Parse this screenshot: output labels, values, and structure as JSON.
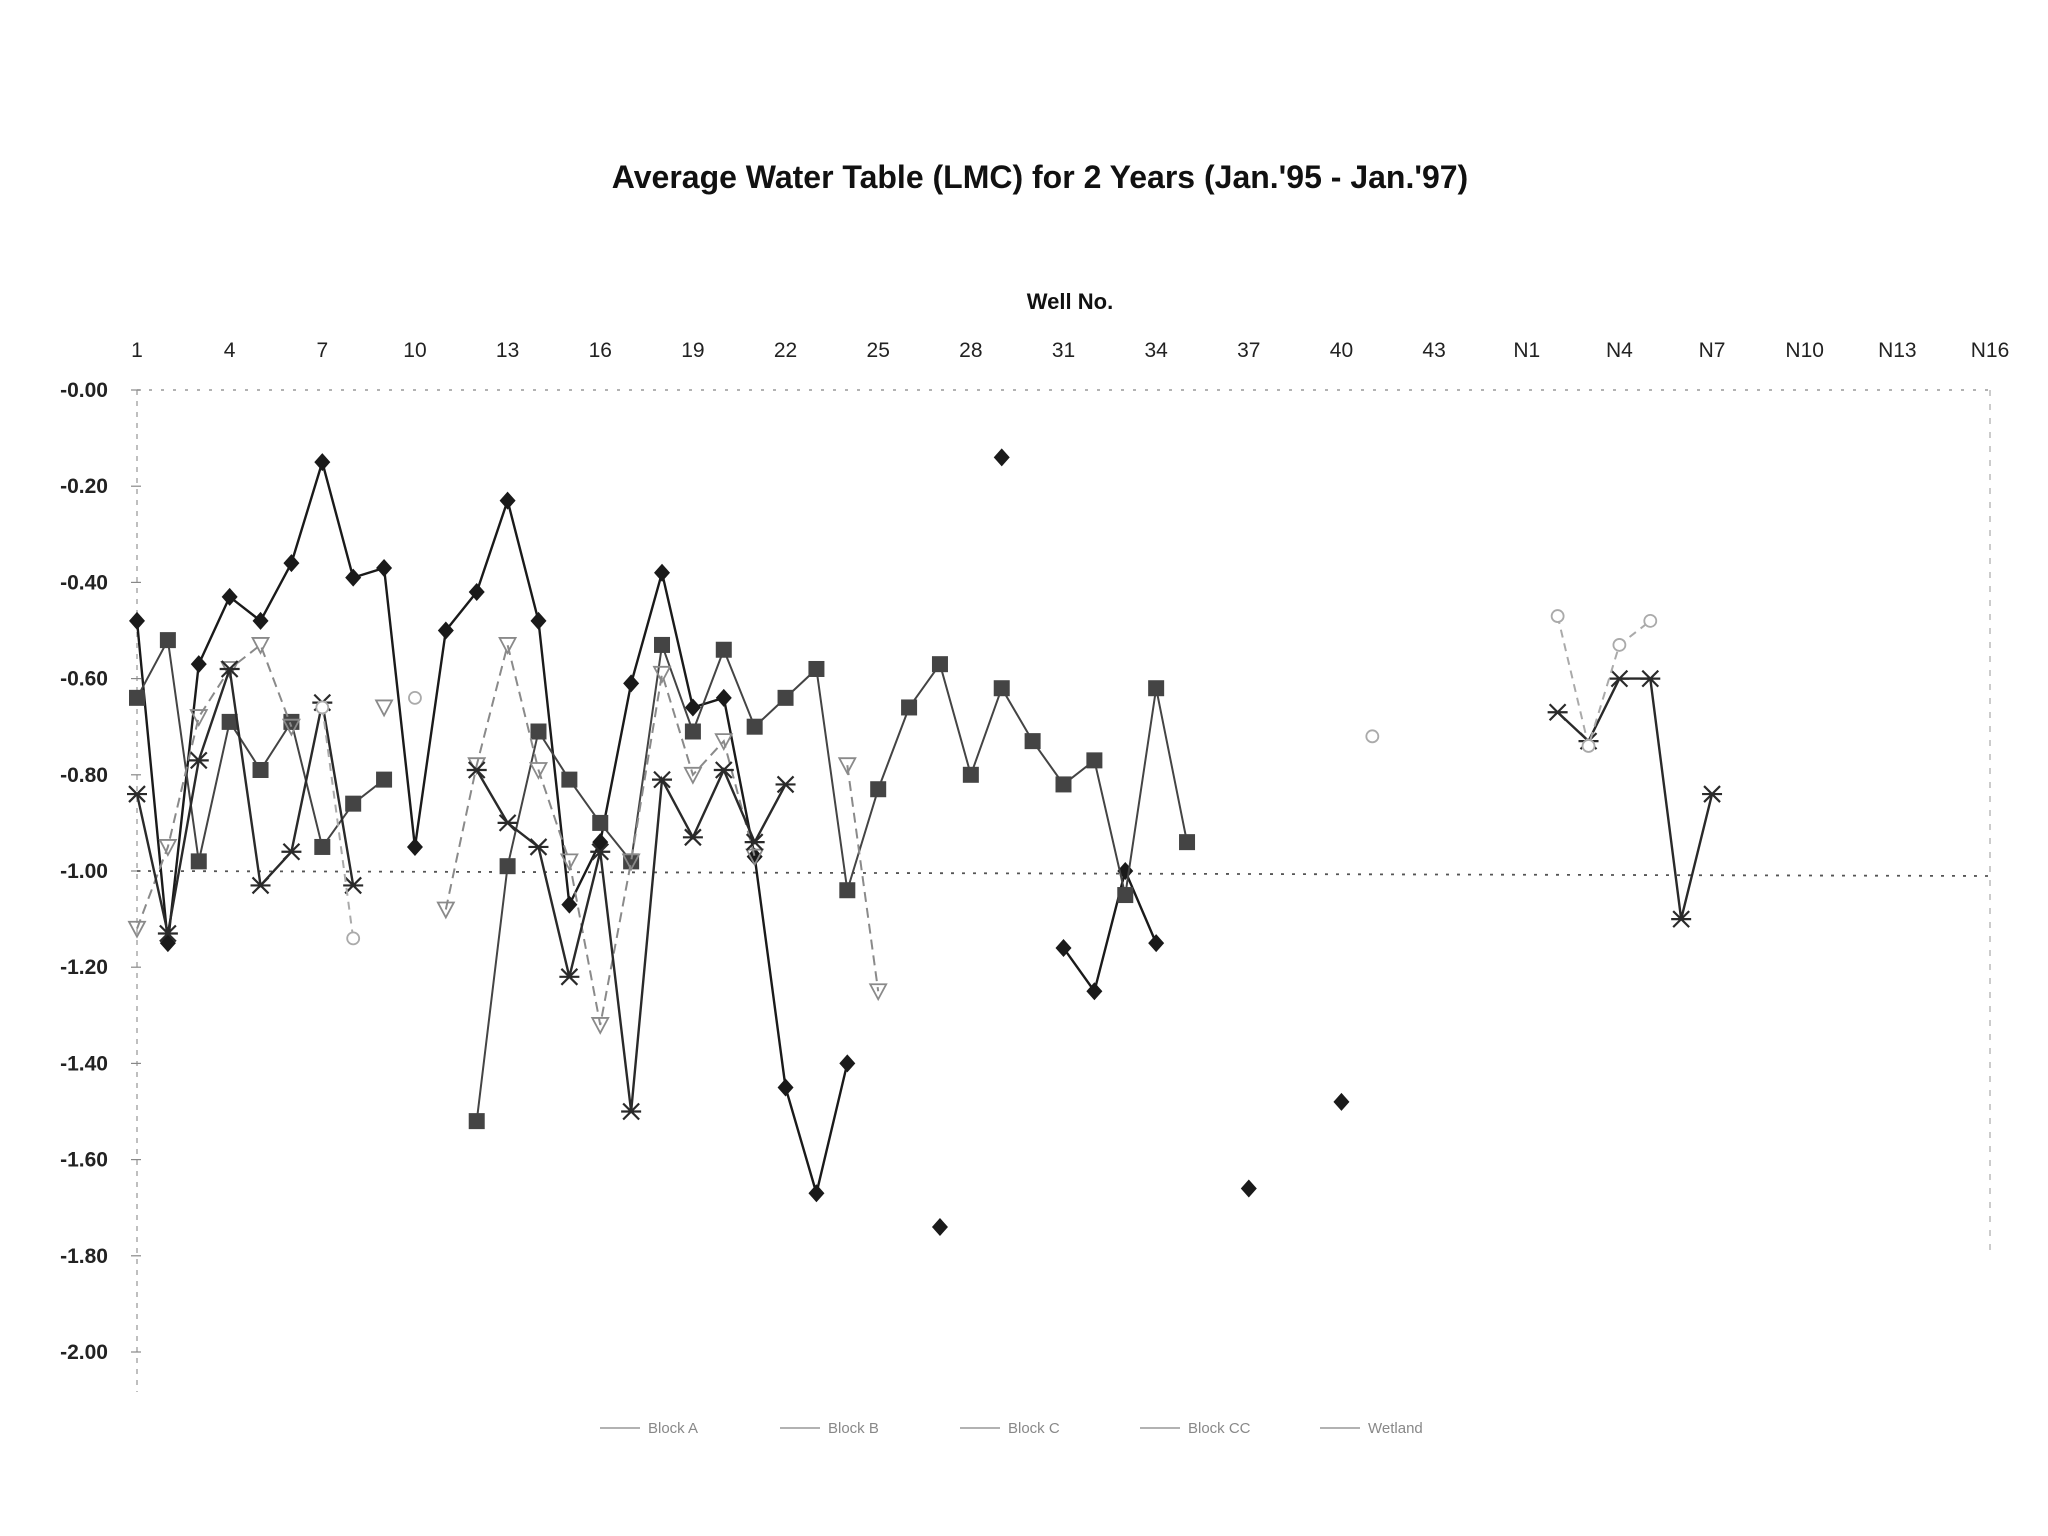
{
  "chart_data": {
    "type": "line",
    "title": "Average Water Table (LMC) for 2 Years (Jan.'95 - Jan.'97)",
    "xlabel": "Well No.",
    "ylabel": "",
    "ylim": [
      -2.0,
      0.0
    ],
    "y_ticks": [
      "-0.00",
      "-0.20",
      "-0.40",
      "-0.60",
      "-0.80",
      "-1.00",
      "-1.20",
      "-1.40",
      "-1.60",
      "-1.80",
      "-2.00"
    ],
    "x_tick_labels": [
      "1",
      "4",
      "7",
      "10",
      "13",
      "16",
      "19",
      "22",
      "25",
      "28",
      "31",
      "34",
      "37",
      "40",
      "43",
      "N1",
      "N4",
      "N7",
      "N10",
      "N13",
      "N16"
    ],
    "x_categories_count": 61,
    "reference_line": -1.0,
    "legend": [
      "Block A",
      "Block B",
      "Block C",
      "Block CC",
      "Wetland"
    ],
    "series": [
      {
        "name": "Block A",
        "color": "#1a1a1a",
        "marker": "diamond",
        "values": [
          -0.48,
          -1.15,
          -0.57,
          -0.43,
          -0.48,
          -0.36,
          -0.15,
          -0.39,
          -0.37,
          -0.95,
          -0.5,
          -0.42,
          -0.23,
          -0.48,
          -1.07,
          -0.94,
          -0.61,
          -0.38,
          -0.66,
          -0.64,
          -0.97,
          -1.45,
          -1.67,
          -1.4,
          null,
          null,
          -1.74,
          null,
          -0.14,
          null,
          -1.16,
          -1.25,
          -1.0,
          -1.15,
          null,
          null,
          -1.66,
          null,
          null,
          -1.48,
          null,
          null,
          null,
          null,
          null,
          null,
          null,
          null,
          null,
          null,
          null,
          null,
          null,
          null,
          null,
          null,
          null,
          null,
          null,
          null,
          null
        ]
      },
      {
        "name": "Block B",
        "color": "#444444",
        "marker": "square",
        "values": [
          -0.64,
          -0.52,
          -0.98,
          -0.69,
          -0.79,
          -0.69,
          -0.95,
          -0.86,
          -0.81,
          null,
          null,
          -1.52,
          -0.99,
          -0.71,
          -0.81,
          -0.9,
          -0.98,
          -0.53,
          -0.71,
          -0.54,
          -0.7,
          -0.64,
          -0.58,
          -1.04,
          -0.83,
          -0.66,
          -0.57,
          -0.8,
          -0.62,
          -0.73,
          -0.82,
          -0.77,
          -1.05,
          -0.62,
          -0.94,
          null,
          null,
          null,
          null,
          null,
          null,
          null,
          null,
          null,
          null,
          null,
          null,
          null,
          null,
          null,
          null,
          null,
          null,
          null,
          null,
          null,
          null,
          null,
          null,
          null,
          null
        ]
      },
      {
        "name": "Block C",
        "color": "#8a8a8a",
        "marker": "triangle",
        "values": [
          -1.12,
          -0.95,
          -0.68,
          -0.58,
          -0.53,
          -0.7,
          null,
          null,
          -0.66,
          null,
          -1.08,
          -0.78,
          -0.53,
          -0.79,
          -0.98,
          -1.32,
          -0.98,
          -0.59,
          -0.8,
          -0.73,
          -0.97,
          null,
          null,
          -0.78,
          -1.25,
          null,
          null,
          null,
          null,
          null,
          null,
          null,
          null,
          null,
          null,
          null,
          null,
          null,
          null,
          null,
          null,
          null,
          null,
          null,
          null,
          null,
          null,
          null,
          null,
          null,
          null,
          null,
          null,
          null,
          null,
          null,
          null,
          null,
          null,
          null,
          null
        ]
      },
      {
        "name": "Block CC",
        "color": "#2a2a2a",
        "marker": "asterisk",
        "values": [
          -0.84,
          -1.13,
          -0.77,
          -0.58,
          -1.03,
          -0.96,
          -0.65,
          -1.03,
          null,
          null,
          null,
          -0.79,
          -0.9,
          -0.95,
          -1.22,
          -0.96,
          -1.5,
          -0.81,
          -0.93,
          -0.79,
          -0.94,
          -0.82,
          null,
          null,
          null,
          null,
          null,
          null,
          null,
          null,
          null,
          null,
          null,
          null,
          null,
          null,
          null,
          null,
          null,
          null,
          null,
          null,
          null,
          null,
          null,
          null,
          -0.67,
          -0.73,
          -0.6,
          -0.6,
          -1.1,
          -0.84,
          null,
          null,
          null,
          null,
          null,
          null,
          null,
          null,
          null
        ]
      },
      {
        "name": "Wetland",
        "color": "#aaaaaa",
        "marker": "circle",
        "values": [
          null,
          null,
          null,
          null,
          null,
          null,
          -0.66,
          -1.14,
          null,
          -0.64,
          null,
          null,
          null,
          null,
          null,
          null,
          null,
          null,
          null,
          null,
          null,
          null,
          null,
          null,
          null,
          null,
          null,
          null,
          null,
          null,
          null,
          null,
          null,
          null,
          null,
          null,
          null,
          null,
          null,
          null,
          -0.72,
          null,
          null,
          null,
          null,
          null,
          -0.47,
          -0.74,
          -0.53,
          -0.48,
          null,
          null,
          null,
          null,
          null,
          null,
          null,
          null,
          null,
          null,
          null
        ]
      }
    ]
  }
}
